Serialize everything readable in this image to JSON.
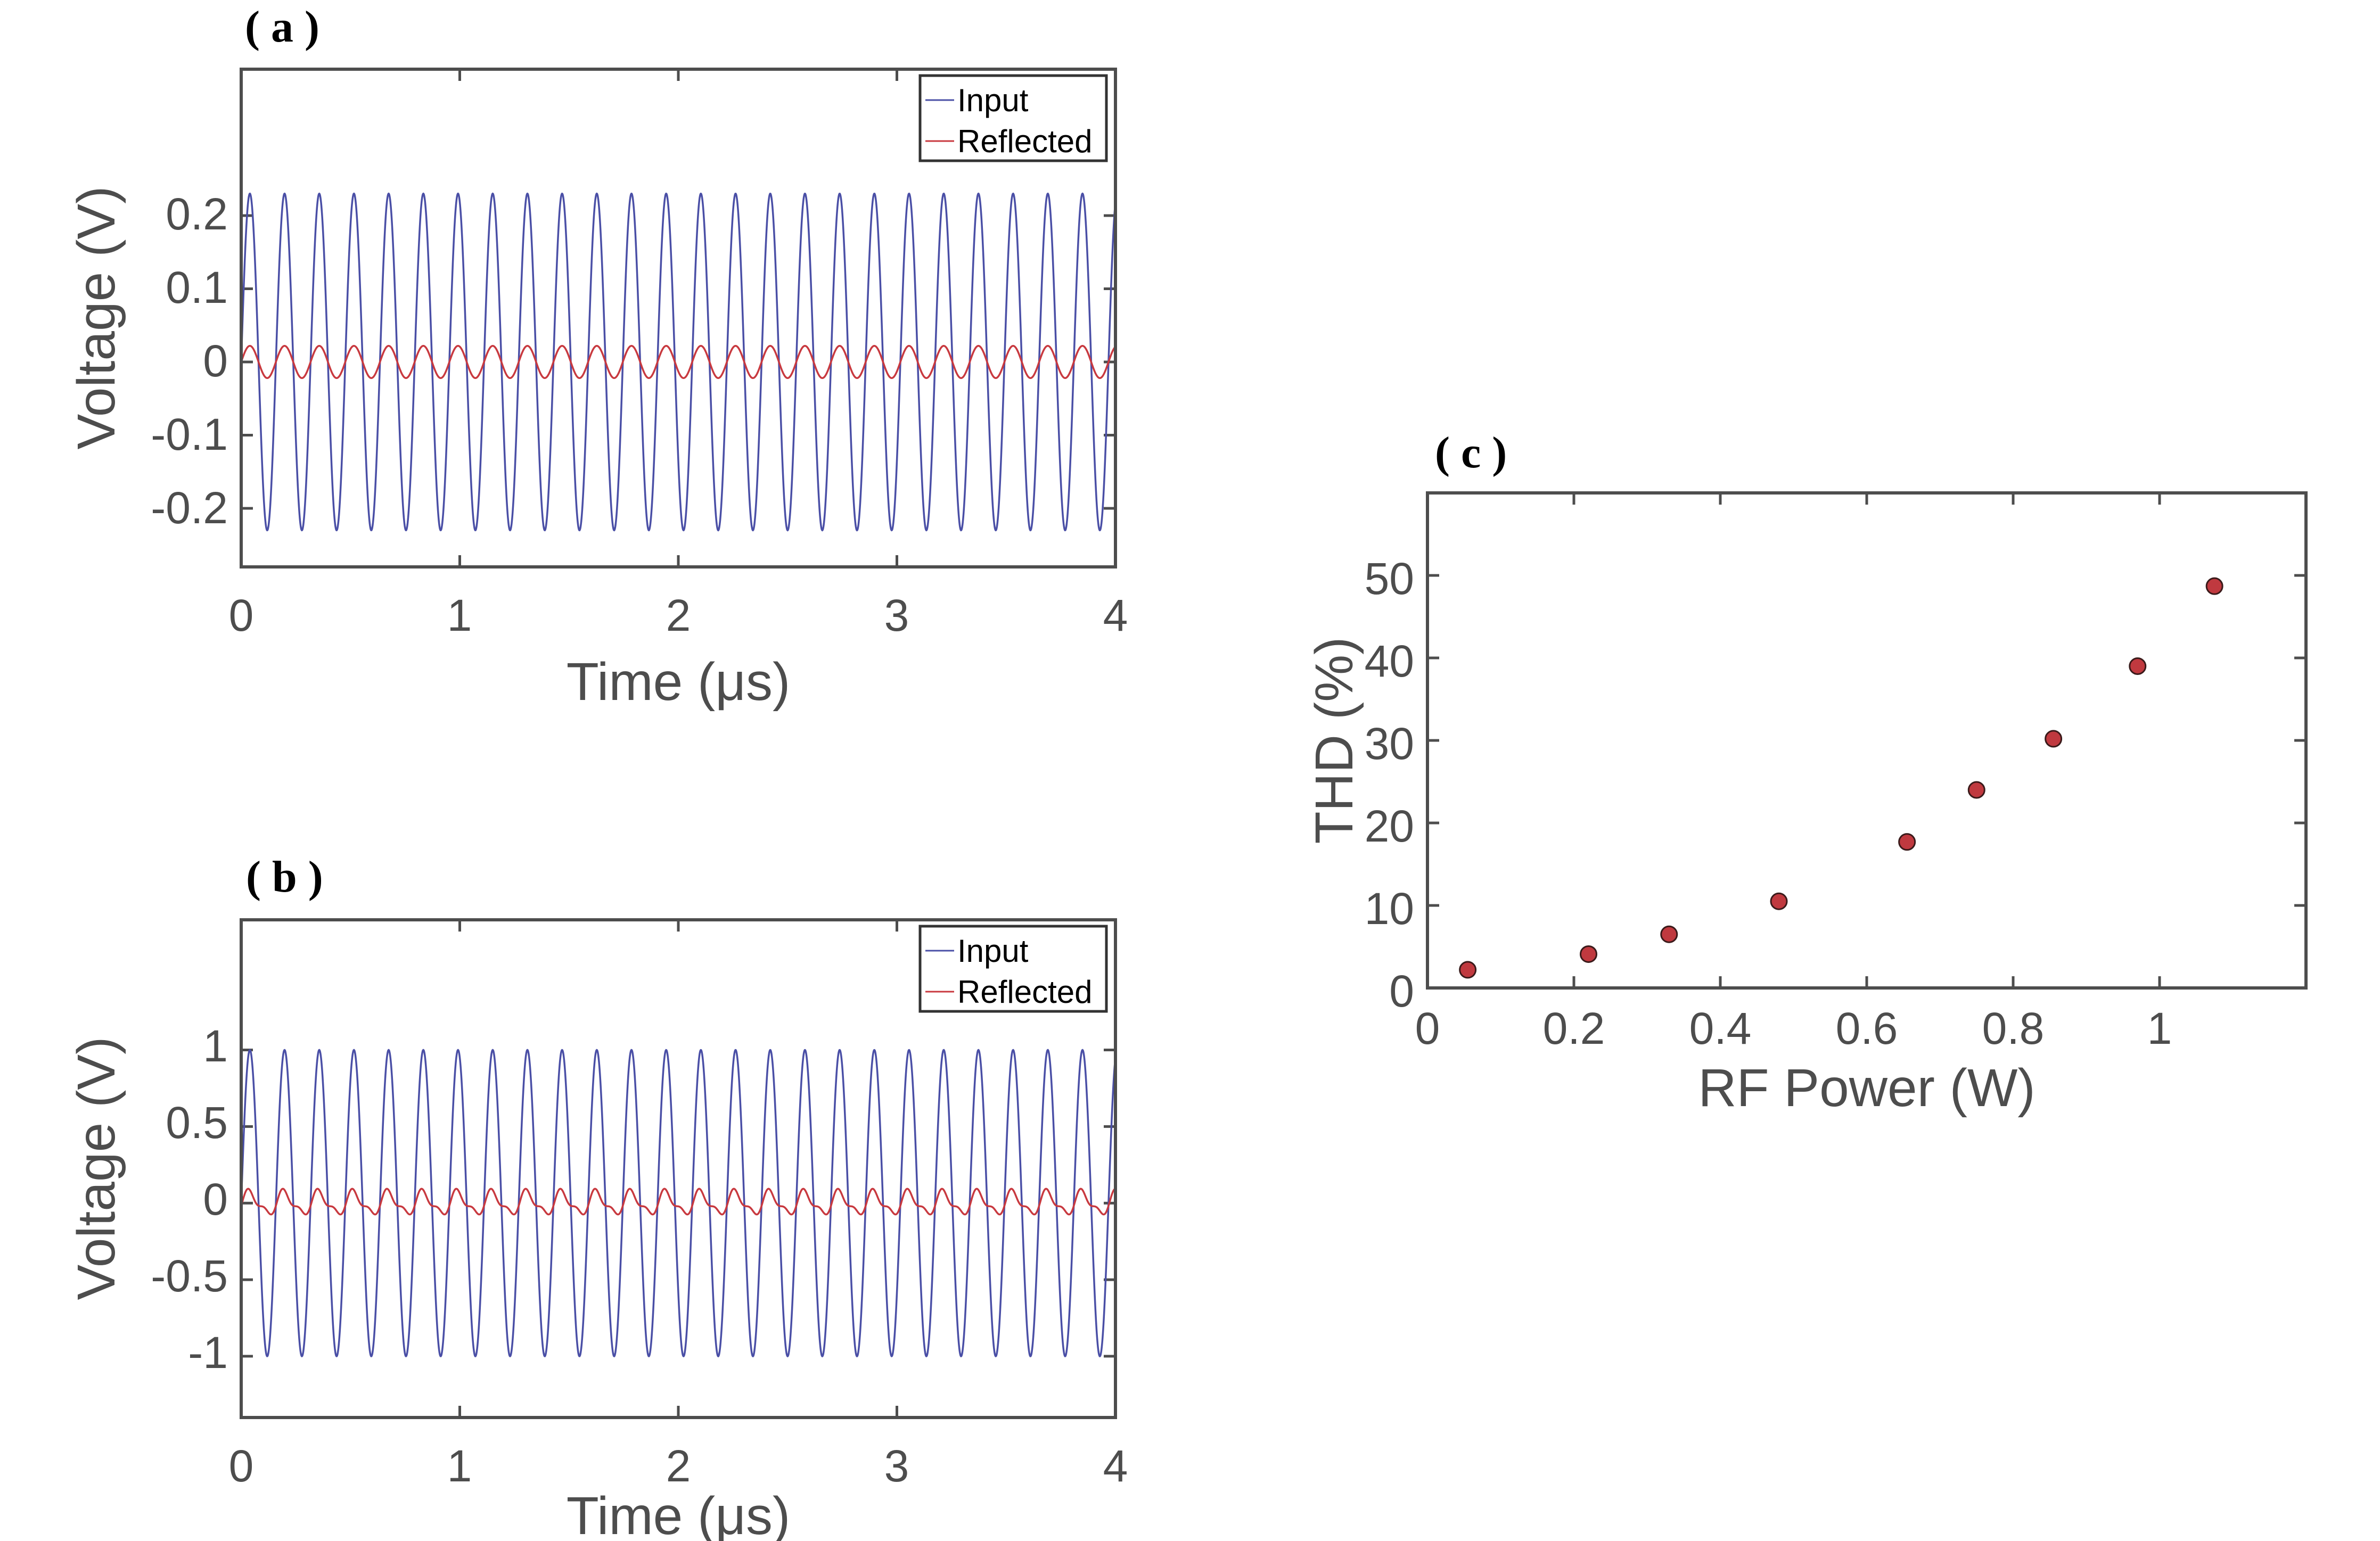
{
  "colors": {
    "input": "#4a4fa6",
    "reflected": "#c8393f",
    "marker_fill": "#c0393f",
    "marker_edge": "#3a1a1a",
    "axis": "#4d4d4d"
  },
  "chart_data": [
    {
      "panel_label": "( a )",
      "type": "line",
      "xlabel": "Time (μs)",
      "ylabel": "Voltage (V)",
      "xlim": [
        0,
        4
      ],
      "ylim": [
        -0.28,
        0.4
      ],
      "xticks": [
        0,
        1,
        2,
        3,
        4
      ],
      "xticklabels": [
        "0",
        "1",
        "2",
        "3",
        "4"
      ],
      "yticks": [
        -0.2,
        -0.1,
        0,
        0.1,
        0.2
      ],
      "yticklabels": [
        "-0.2",
        "-0.1",
        "0",
        "0.1",
        "0.2"
      ],
      "legend_position": "top-right",
      "series": [
        {
          "name": "Input",
          "amplitude": 0.23,
          "frequency_mhz": 6.3,
          "harmonic2": 0
        },
        {
          "name": "Reflected",
          "amplitude": 0.022,
          "frequency_mhz": 6.3,
          "harmonic2": 0
        }
      ]
    },
    {
      "panel_label": "( b )",
      "type": "line",
      "xlabel": "Time (μs)",
      "ylabel": "Voltage (V)",
      "xlim": [
        0,
        4
      ],
      "ylim": [
        -1.4,
        1.85
      ],
      "xticks": [
        0,
        1,
        2,
        3,
        4
      ],
      "xticklabels": [
        "0",
        "1",
        "2",
        "3",
        "4"
      ],
      "yticks": [
        -1,
        -0.5,
        0,
        0.5,
        1
      ],
      "yticklabels": [
        "-1",
        "-0.5",
        "0",
        "0.5",
        "1"
      ],
      "legend_position": "top-right",
      "series": [
        {
          "name": "Input",
          "amplitude": 1.0,
          "frequency_mhz": 6.3,
          "harmonic2": 0
        },
        {
          "name": "Reflected",
          "amplitude": 0.085,
          "frequency_mhz": 6.3,
          "harmonic2": 0.45
        }
      ]
    },
    {
      "panel_label": "( c )",
      "type": "scatter",
      "xlabel": "RF Power (W)",
      "ylabel": "THD (%)",
      "xlim": [
        0,
        1.2
      ],
      "ylim": [
        0,
        60
      ],
      "xticks": [
        0,
        0.2,
        0.4,
        0.6,
        0.8,
        1
      ],
      "xticklabels": [
        "0",
        "0.2",
        "0.4",
        "0.6",
        "0.8",
        "1"
      ],
      "yticks": [
        0,
        10,
        20,
        30,
        40,
        50
      ],
      "yticklabels": [
        "0",
        "10",
        "20",
        "30",
        "40",
        "50"
      ],
      "x": [
        0.055,
        0.22,
        0.33,
        0.48,
        0.655,
        0.75,
        0.855,
        0.97,
        1.075
      ],
      "y": [
        2.2,
        4.1,
        6.5,
        10.5,
        17.7,
        24.0,
        30.2,
        39.0,
        48.7
      ]
    }
  ]
}
